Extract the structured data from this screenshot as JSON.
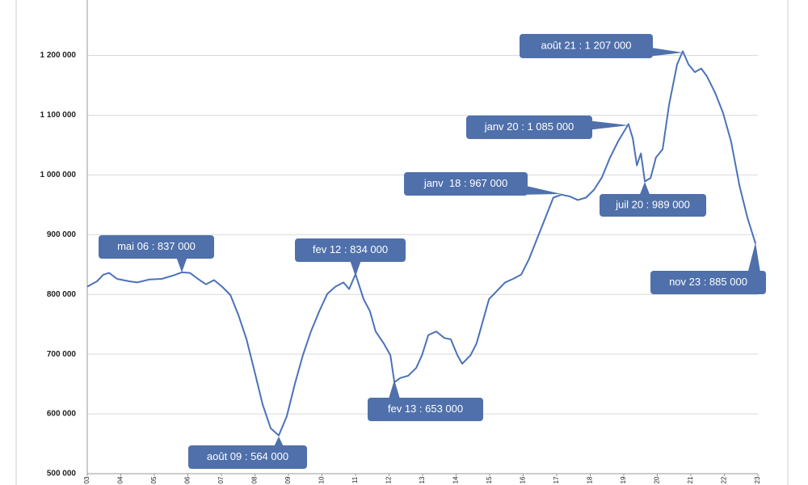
{
  "chart_data": {
    "type": "line",
    "color": "#4a72b8",
    "grid": true,
    "xlim": [
      3,
      23
    ],
    "ylim": [
      500000,
      1290000
    ],
    "xticks": [
      {
        "value": 3,
        "label": "03"
      },
      {
        "value": 4,
        "label": "04"
      },
      {
        "value": 5,
        "label": "05"
      },
      {
        "value": 6,
        "label": "06"
      },
      {
        "value": 7,
        "label": "07"
      },
      {
        "value": 8,
        "label": "08"
      },
      {
        "value": 9,
        "label": "09"
      },
      10,
      11,
      12,
      13,
      14,
      15,
      16,
      17,
      18,
      19,
      20,
      21,
      22,
      23
    ],
    "yticks": [
      {
        "value": 500000,
        "label": "500 000"
      },
      {
        "value": 600000,
        "label": "600 000"
      },
      {
        "value": 700000,
        "label": "700 000"
      },
      {
        "value": 800000,
        "label": "800 000"
      },
      {
        "value": 900000,
        "label": "900 000"
      },
      {
        "value": 1000000,
        "label": "1 000 000"
      },
      {
        "value": 1100000,
        "label": "1 100 000"
      },
      {
        "value": 1200000,
        "label": "1 200 000"
      }
    ],
    "x": [
      3.0,
      3.29,
      3.48,
      3.65,
      3.89,
      4.25,
      4.49,
      4.86,
      5.22,
      5.58,
      5.82,
      6.06,
      6.3,
      6.54,
      6.78,
      7.02,
      7.27,
      7.51,
      7.75,
      7.99,
      8.23,
      8.47,
      8.71,
      8.95,
      9.19,
      9.43,
      9.67,
      9.92,
      10.16,
      10.4,
      10.64,
      10.81,
      11.0,
      11.24,
      11.43,
      11.6,
      11.84,
      12.04,
      12.16,
      12.33,
      12.57,
      12.81,
      12.98,
      13.17,
      13.41,
      13.65,
      13.84,
      14.04,
      14.18,
      14.43,
      14.61,
      14.78,
      14.98,
      15.22,
      15.46,
      15.7,
      15.94,
      16.18,
      16.42,
      16.66,
      16.9,
      17.14,
      17.39,
      17.63,
      17.87,
      18.11,
      18.35,
      18.59,
      18.83,
      19.14,
      19.27,
      19.39,
      19.51,
      19.63,
      19.8,
      19.96,
      20.16,
      20.35,
      20.59,
      20.76,
      20.93,
      21.12,
      21.31,
      21.48,
      21.72,
      21.96,
      22.2,
      22.45,
      22.69,
      22.93
    ],
    "values": [
      813000,
      822000,
      833000,
      836000,
      826000,
      822000,
      820000,
      825000,
      826000,
      832000,
      837000,
      836000,
      826000,
      817000,
      824000,
      813000,
      799000,
      765000,
      725000,
      671000,
      616000,
      576000,
      564000,
      596000,
      650000,
      698000,
      738000,
      772000,
      801000,
      813000,
      820000,
      809000,
      834000,
      792000,
      772000,
      738000,
      718000,
      698000,
      653000,
      660000,
      664000,
      677000,
      698000,
      732000,
      738000,
      727000,
      725000,
      698000,
      684000,
      698000,
      718000,
      752000,
      792000,
      806000,
      820000,
      826000,
      833000,
      860000,
      894000,
      928000,
      962000,
      967000,
      964000,
      958000,
      962000,
      975000,
      996000,
      1029000,
      1056000,
      1085000,
      1061000,
      1016000,
      1036000,
      989000,
      995000,
      1029000,
      1043000,
      1117000,
      1185000,
      1207000,
      1185000,
      1172000,
      1178000,
      1165000,
      1138000,
      1104000,
      1056000,
      982000,
      928000,
      885000
    ],
    "annotations": [
      "mai 06 : 837 000",
      "fev 12 : 834 000",
      "août 09 : 564 000",
      "fev 13 : 653 000",
      "janv  18 : 967 000",
      "janv 20 : 1 085 000",
      "juil 20 : 989 000",
      "août 21 : 1 207 000",
      "nov 23 : 885 000"
    ]
  }
}
